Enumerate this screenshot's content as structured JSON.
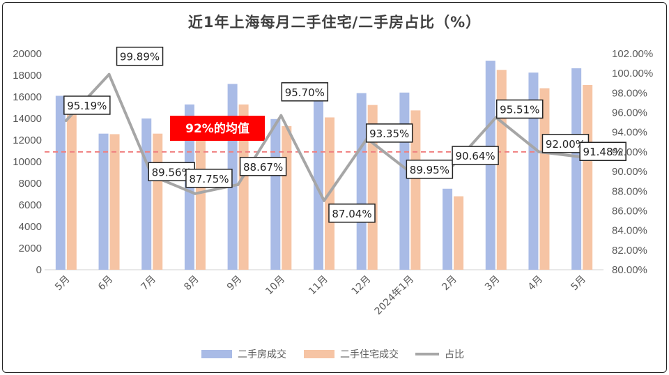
{
  "chart_data": {
    "type": "bar+line",
    "title": "近1年上海每月二手住宅/二手房占比（%）",
    "categories": [
      "5月",
      "6月",
      "7月",
      "8月",
      "9月",
      "10月",
      "11月",
      "12月",
      "2024年1月",
      "2月",
      "3月",
      "4月",
      "5月"
    ],
    "series": [
      {
        "name": "二手房成交",
        "type": "bar",
        "axis": "left",
        "color": "#A9BBE6",
        "values": [
          16100,
          12600,
          14000,
          15300,
          17200,
          13950,
          16200,
          16350,
          16400,
          7500,
          19350,
          18250,
          18650
        ]
      },
      {
        "name": "二手住宅成交",
        "type": "bar",
        "axis": "left",
        "color": "#F6C4A4",
        "values": [
          15300,
          12550,
          12600,
          13700,
          15300,
          13300,
          14100,
          15250,
          14750,
          6800,
          18500,
          16800,
          17100
        ]
      },
      {
        "name": "占比",
        "type": "line",
        "axis": "right",
        "color": "#A6A6A6",
        "values": [
          95.19,
          99.89,
          89.56,
          87.75,
          88.67,
          95.7,
          87.04,
          93.35,
          89.95,
          90.64,
          95.51,
          92.0,
          91.48
        ],
        "labels": [
          "95.19%",
          "99.89%",
          "89.56%",
          "87.75%",
          "88.67%",
          "95.70%",
          "87.04%",
          "93.35%",
          "89.95%",
          "90.64%",
          "95.51%",
          "92.00%",
          "91.48%"
        ]
      }
    ],
    "left_axis": {
      "min": 0,
      "max": 20000,
      "step": 2000,
      "ticks": [
        "0",
        "2000",
        "4000",
        "6000",
        "8000",
        "10000",
        "12000",
        "14000",
        "16000",
        "18000",
        "20000"
      ]
    },
    "right_axis": {
      "min": 80,
      "max": 102,
      "step": 2,
      "ticks": [
        "80.00%",
        "82.00%",
        "84.00%",
        "86.00%",
        "88.00%",
        "90.00%",
        "92.00%",
        "94.00%",
        "96.00%",
        "98.00%",
        "100.00%",
        "102.00%"
      ]
    },
    "average_line": {
      "value": 92,
      "label": "92%的均值",
      "color": "#FF0000"
    },
    "legend": [
      "二手房成交",
      "二手住宅成交",
      "占比"
    ],
    "legend_position": "bottom"
  }
}
